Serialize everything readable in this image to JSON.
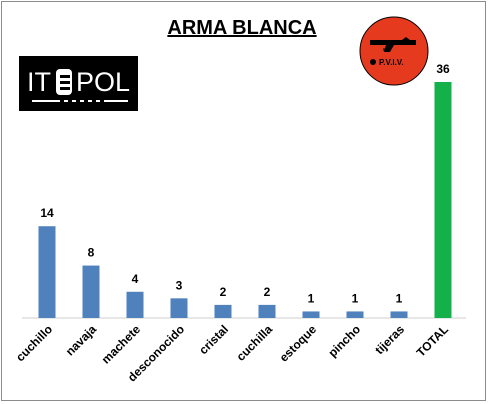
{
  "chart_data": {
    "type": "bar",
    "title": "ARMA BLANCA",
    "categories": [
      "cuchillo",
      "navaja",
      "machete",
      "desconocido",
      "cristal",
      "cuchilla",
      "estoque",
      "pincho",
      "tijeras",
      "TOTAL"
    ],
    "values": [
      14,
      8,
      4,
      3,
      2,
      2,
      1,
      1,
      1,
      36
    ],
    "colors": [
      "#4f81bd",
      "#4f81bd",
      "#4f81bd",
      "#4f81bd",
      "#4f81bd",
      "#4f81bd",
      "#4f81bd",
      "#4f81bd",
      "#4f81bd",
      "#14b14b"
    ],
    "ylim": [
      0,
      36
    ],
    "grid": false,
    "legend": false,
    "data_labels": true
  },
  "logos": {
    "left": {
      "text": "IT",
      "text2": "POL"
    },
    "right": {
      "text": "P.V.I.V."
    }
  }
}
